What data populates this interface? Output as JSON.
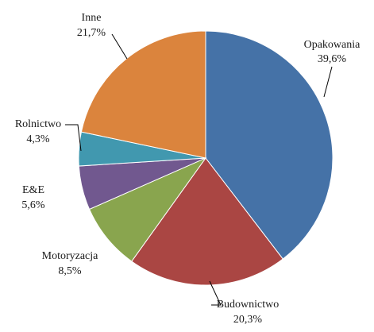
{
  "chart_data": {
    "type": "pie",
    "title": "",
    "slices": [
      {
        "label": "Opakowania",
        "value": 39.6,
        "value_label": "39,6%",
        "color": "#4572A7"
      },
      {
        "label": "Budownictwo",
        "value": 20.3,
        "value_label": "20,3%",
        "color": "#AA4643"
      },
      {
        "label": "Motoryzacja",
        "value": 8.5,
        "value_label": "8,5%",
        "color": "#89A54E"
      },
      {
        "label": "E&E",
        "value": 5.6,
        "value_label": "5,6%",
        "color": "#71588F"
      },
      {
        "label": "Rolnictwo",
        "value": 4.3,
        "value_label": "4,3%",
        "color": "#4198AF"
      },
      {
        "label": "Inne",
        "value": 21.7,
        "value_label": "21,7%",
        "color": "#DB843D"
      }
    ],
    "start_angle_deg": 0,
    "direction": "clockwise",
    "legend": "none",
    "data_labels": "outside-with-leaders"
  }
}
